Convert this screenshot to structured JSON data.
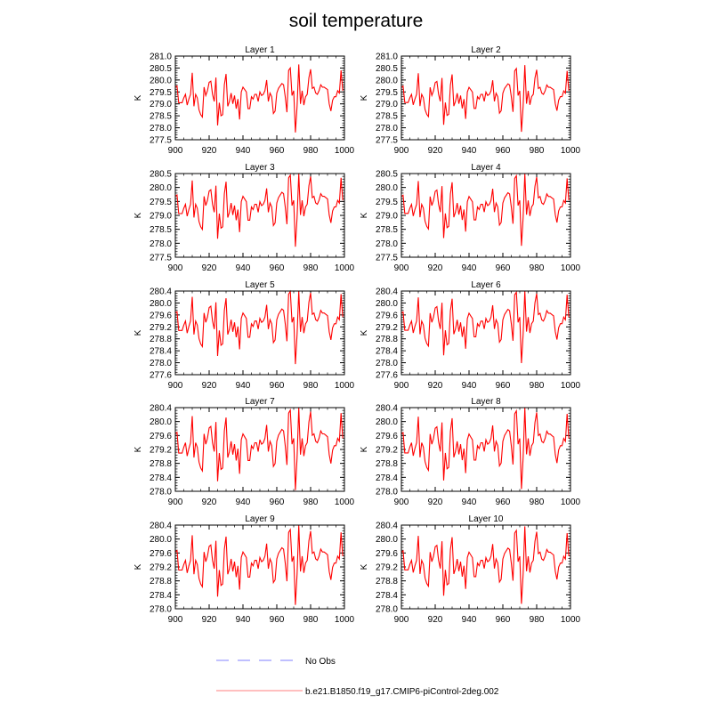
{
  "chart_data": {
    "type": "line",
    "title": "soil temperature",
    "ylabel": "K",
    "x_start": 900,
    "x_step": 1,
    "xlim": [
      900,
      1000
    ],
    "xticks": [
      900,
      920,
      940,
      960,
      980,
      1000
    ],
    "legend": {
      "placement": "bottom",
      "entries": [
        {
          "label": "No Obs",
          "color": "#9999ff",
          "style": "dashed"
        },
        {
          "label": "b.e21.B1850.f19_g17.CMIP6-piControl-2deg.002",
          "color": "#ff0000",
          "style": "solid"
        }
      ]
    },
    "line_color": "#ff0000",
    "base_series_mean": 279.35,
    "base_series": [
      279.7,
      279.75,
      279.05,
      279.05,
      279.05,
      279.25,
      279.4,
      278.95,
      279.2,
      279.4,
      280.3,
      278.9,
      279.4,
      279.25,
      278.75,
      278.55,
      278.45,
      279.7,
      279.35,
      279.55,
      279.9,
      279.95,
      279.4,
      279.1,
      280.1,
      278.1,
      279.05,
      278.5,
      278.55,
      279.8,
      280.25,
      278.9,
      279.1,
      279.45,
      279.0,
      279.35,
      278.8,
      279.2,
      278.35,
      279.5,
      279.7,
      279.6,
      279.5,
      278.8,
      278.8,
      279.3,
      279.2,
      279.4,
      279.4,
      279.1,
      279.5,
      279.35,
      279.4,
      279.55,
      280.0,
      279.1,
      279.45,
      279.3,
      278.6,
      278.7,
      279.45,
      279.65,
      279.75,
      279.85,
      279.8,
      279.3,
      278.65,
      280.4,
      280.5,
      279.35,
      279.55,
      277.8,
      278.9,
      280.65,
      279.0,
      279.55,
      278.95,
      279.3,
      279.4,
      280.1,
      280.45,
      279.65,
      279.7,
      279.45,
      279.4,
      279.55,
      279.8,
      279.7,
      279.7,
      279.65,
      279.6,
      279.0,
      278.7,
      279.15,
      279.3,
      279.3,
      279.55,
      279.45,
      280.4,
      279.55
    ],
    "panels": [
      {
        "title": "Layer 1",
        "anomaly_scale": 1.0,
        "ylim": [
          277.5,
          281.0
        ],
        "yticks": [
          "277.5",
          "278.0",
          "278.5",
          "279.0",
          "279.5",
          "280.0",
          "280.5",
          "281.0"
        ]
      },
      {
        "title": "Layer 2",
        "anomaly_scale": 0.98,
        "ylim": [
          277.5,
          281.0
        ],
        "yticks": [
          "277.5",
          "278.0",
          "278.5",
          "279.0",
          "279.5",
          "280.0",
          "280.5",
          "281.0"
        ]
      },
      {
        "title": "Layer 3",
        "anomaly_scale": 0.95,
        "ylim": [
          277.5,
          280.5
        ],
        "yticks": [
          "277.5",
          "278.0",
          "278.5",
          "279.0",
          "279.5",
          "280.0",
          "280.5"
        ]
      },
      {
        "title": "Layer 4",
        "anomaly_scale": 0.93,
        "ylim": [
          277.5,
          280.5
        ],
        "yticks": [
          "277.5",
          "278.0",
          "278.5",
          "279.0",
          "279.5",
          "280.0",
          "280.5"
        ]
      },
      {
        "title": "Layer 5",
        "anomaly_scale": 0.9,
        "ylim": [
          277.6,
          280.4
        ],
        "yticks": [
          "277.6",
          "278.0",
          "278.4",
          "278.8",
          "279.2",
          "279.6",
          "280.0",
          "280.4"
        ]
      },
      {
        "title": "Layer 6",
        "anomaly_scale": 0.88,
        "ylim": [
          277.6,
          280.4
        ],
        "yticks": [
          "277.6",
          "278.0",
          "278.4",
          "278.8",
          "279.2",
          "279.6",
          "280.0",
          "280.4"
        ]
      },
      {
        "title": "Layer 7",
        "anomaly_scale": 0.85,
        "ylim": [
          278.0,
          280.4
        ],
        "yticks": [
          "278.0",
          "278.4",
          "278.8",
          "279.2",
          "279.6",
          "280.0",
          "280.4"
        ]
      },
      {
        "title": "Layer 8",
        "anomaly_scale": 0.83,
        "ylim": [
          278.0,
          280.4
        ],
        "yticks": [
          "278.0",
          "278.4",
          "278.8",
          "279.2",
          "279.6",
          "280.0",
          "280.4"
        ]
      },
      {
        "title": "Layer 9",
        "anomaly_scale": 0.8,
        "ylim": [
          278.0,
          280.4
        ],
        "yticks": [
          "278.0",
          "278.4",
          "278.8",
          "279.2",
          "279.6",
          "280.0",
          "280.4"
        ]
      },
      {
        "title": "Layer 10",
        "anomaly_scale": 0.78,
        "ylim": [
          278.0,
          280.4
        ],
        "yticks": [
          "278.0",
          "278.4",
          "278.8",
          "279.2",
          "279.6",
          "280.0",
          "280.4"
        ]
      }
    ]
  }
}
